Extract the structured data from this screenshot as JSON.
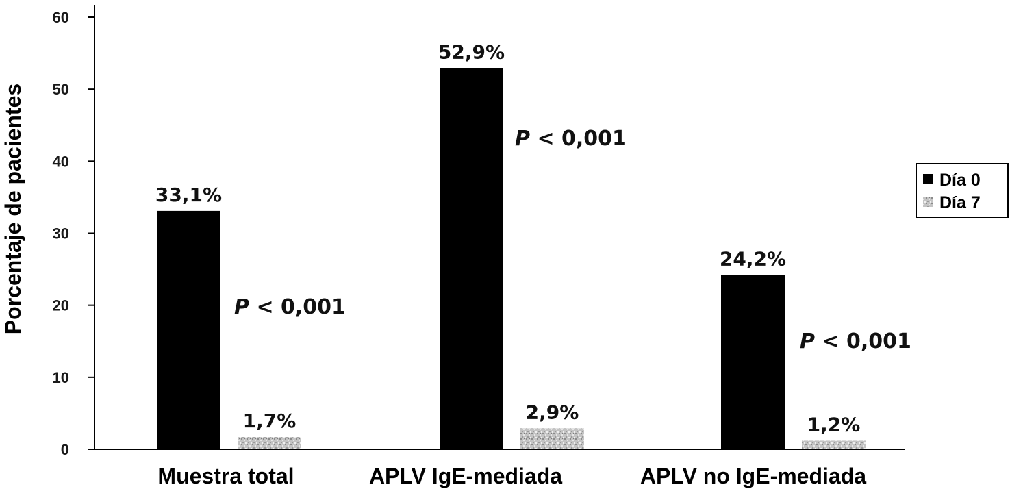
{
  "chart_data": {
    "type": "bar",
    "ylabel": "Porcentaje de pacientes",
    "ylim": [
      0,
      60
    ],
    "yticks": [
      0,
      10,
      20,
      30,
      40,
      50,
      60
    ],
    "categories": [
      "Muestra total",
      "APLV IgE-mediada",
      "APLV no IgE-mediada"
    ],
    "series": [
      {
        "name": "Día 0",
        "values": [
          33.1,
          52.9,
          24.2
        ],
        "labels": [
          "33,1%",
          "52,9%",
          "24,2%"
        ],
        "color": "#000000"
      },
      {
        "name": "Día 7",
        "values": [
          1.7,
          2.9,
          1.2
        ],
        "labels": [
          "1,7%",
          "2,9%",
          "1,2%"
        ],
        "color": "#b8b8b8"
      }
    ],
    "annotations": [
      {
        "p_symbol": "P",
        "text": " < 0,001"
      },
      {
        "p_symbol": "P",
        "text": " < 0,001"
      },
      {
        "p_symbol": "P",
        "text": " < 0,001"
      }
    ],
    "legend": "right",
    "grid": false
  }
}
